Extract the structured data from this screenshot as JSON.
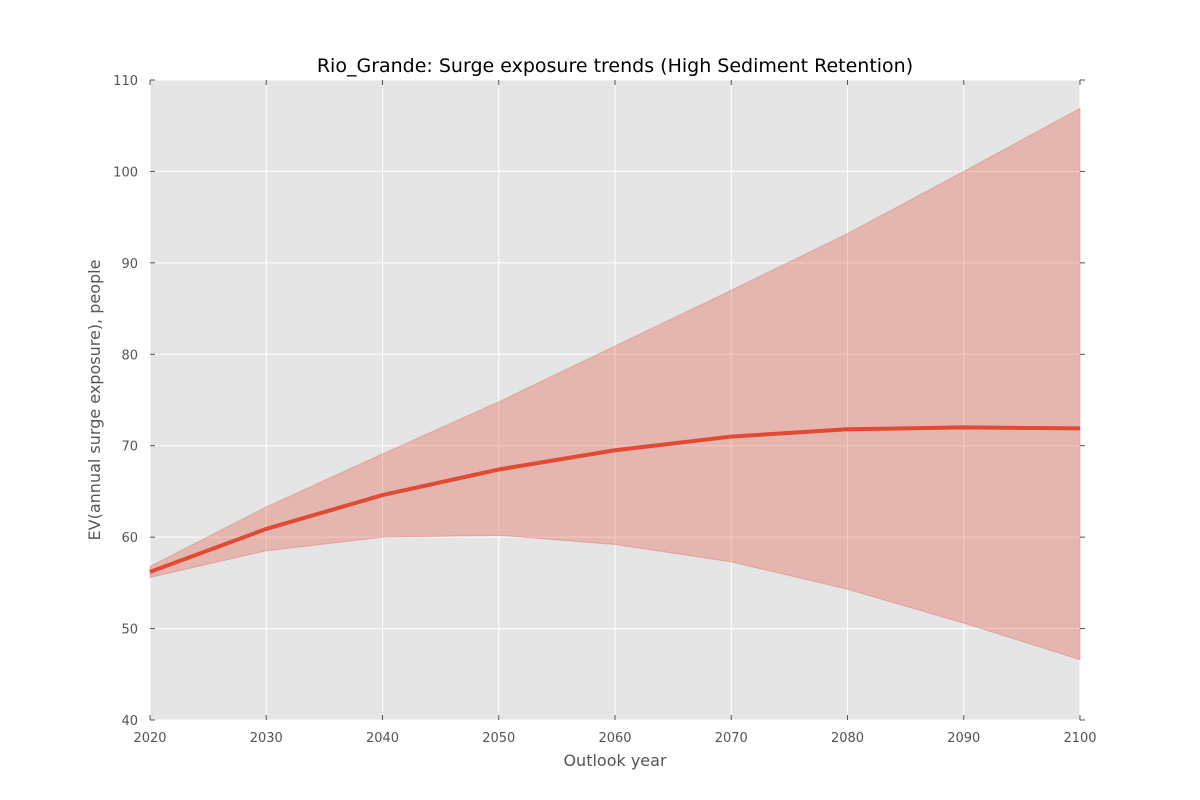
{
  "chart_data": {
    "type": "area",
    "title": "Rio_Grande: Surge exposure trends (High Sediment Retention)",
    "xlabel": "Outlook year",
    "ylabel": "EV(annual surge exposure), people",
    "xlim": [
      2020,
      2100
    ],
    "ylim": [
      40,
      110
    ],
    "x_ticks": [
      "2020",
      "2030",
      "2040",
      "2050",
      "2060",
      "2070",
      "2080",
      "2090",
      "2100"
    ],
    "y_ticks": [
      "40",
      "50",
      "60",
      "70",
      "80",
      "90",
      "100",
      "110"
    ],
    "grid": true,
    "legend": "none",
    "series": [
      {
        "x": [
          2020,
          2030,
          2040,
          2050,
          2060,
          2070,
          2080,
          2090,
          2100
        ],
        "mean": [
          56.2,
          60.9,
          64.6,
          67.4,
          69.5,
          71.0,
          71.8,
          72.0,
          71.9
        ],
        "lower": [
          55.6,
          58.5,
          60.0,
          60.2,
          59.2,
          57.3,
          54.3,
          50.6,
          46.6
        ],
        "upper": [
          56.8,
          63.3,
          69.1,
          74.8,
          80.9,
          87.0,
          93.2,
          100.0,
          106.9
        ]
      }
    ],
    "colors": {
      "line": "#e24a33",
      "band": "#e24a33",
      "plot_bg": "#e5e5e5",
      "grid": "#ffffff"
    }
  }
}
